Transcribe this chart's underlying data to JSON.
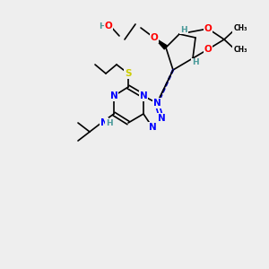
{
  "bg_color": "#eeeeee",
  "atom_colors": {
    "O": "#ff0000",
    "N": "#0000ff",
    "S": "#cccc00",
    "C": "#000000",
    "H": "#4a9a9a"
  },
  "bond_color": "#000000",
  "font_size_atom": 7.5,
  "font_size_h": 6.5
}
